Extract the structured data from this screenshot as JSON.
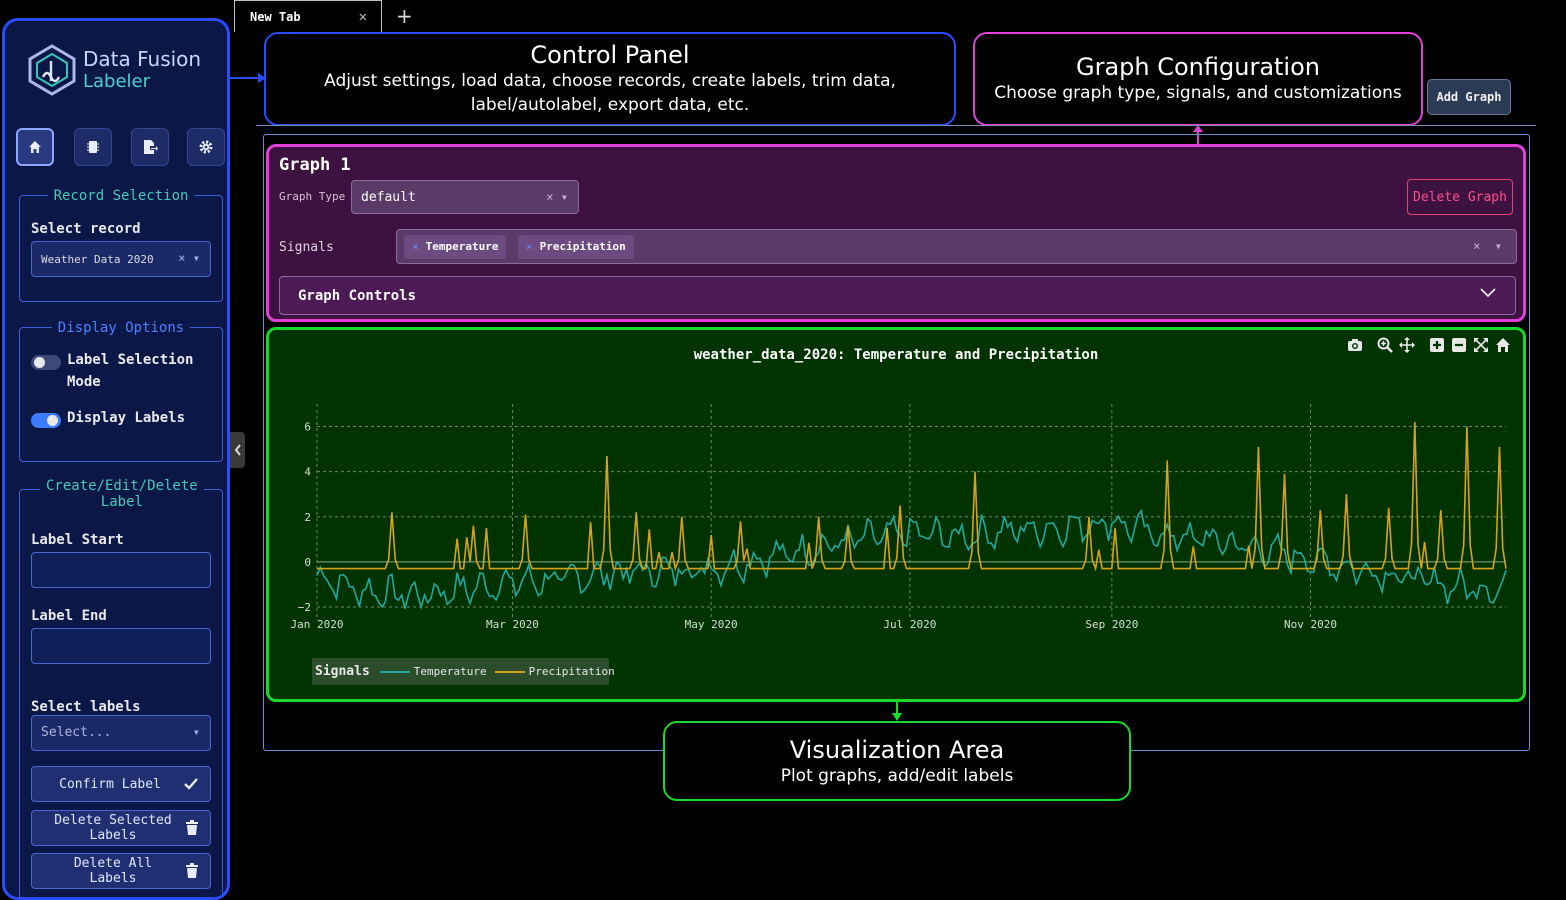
{
  "app": {
    "name_line1": "Data Fusion",
    "name_line2": "Labeler"
  },
  "tabs": [
    {
      "label": "New Tab"
    }
  ],
  "sidebar": {
    "nav": [
      "home-icon",
      "chip-icon",
      "export-icon",
      "gear-icon"
    ],
    "record_selection": {
      "title": "Record Selection",
      "select_label": "Select record",
      "selected_value": "Weather Data 2020"
    },
    "display_options": {
      "title": "Display Options",
      "label_selection_mode": "Label Selection Mode",
      "label_selection_mode_on": false,
      "display_labels": "Display Labels",
      "display_labels_on": true
    },
    "labels": {
      "title": "Create/Edit/Delete Label",
      "label_start": "Label Start",
      "label_start_value": "",
      "label_end": "Label End",
      "label_end_value": "",
      "select_labels": "Select labels",
      "select_placeholder": "Select...",
      "confirm_label": "Confirm Label",
      "delete_selected": "Delete Selected Labels",
      "delete_all": "Delete All Labels"
    }
  },
  "callouts": {
    "control_panel": {
      "title": "Control Panel",
      "text": "Adjust settings, load data, choose records, create labels, trim data, label/autolabel, export data, etc."
    },
    "graph_configuration": {
      "title": "Graph Configuration",
      "text": "Choose graph type, signals, and customizations"
    },
    "visualization_area": {
      "title": "Visualization Area",
      "text": "Plot graphs, add/edit labels"
    }
  },
  "toolbar": {
    "add_graph": "Add Graph"
  },
  "graph": {
    "title": "Graph 1",
    "type_label": "Graph Type",
    "type_value": "default",
    "delete_button": "Delete Graph",
    "signals_label": "Signals",
    "signals": [
      "Temperature",
      "Precipitation"
    ],
    "controls_label": "Graph Controls"
  },
  "colors": {
    "temperature": "#20a8a0",
    "precipitation": "#d8a218",
    "plot_bg": "#003300"
  },
  "chart_data": {
    "type": "line",
    "title": "weather_data_2020: Temperature and Precipitation",
    "legend_title": "Signals",
    "legend_position": "bottom-left",
    "grid": true,
    "x_ticks": [
      "Jan 2020",
      "Mar 2020",
      "May 2020",
      "Jul 2020",
      "Sep 2020",
      "Nov 2020"
    ],
    "y_ticks": [
      "6",
      "4",
      "2",
      "0",
      "−2"
    ],
    "xlim": [
      "2020-01-01",
      "2020-12-31"
    ],
    "ylim": [
      -2.4,
      7
    ],
    "precipitation_baseline": -0.3,
    "series": [
      {
        "name": "Temperature",
        "color": "#20a8a0",
        "x": [
          "2020-01-01",
          "2020-01-15",
          "2020-02-01",
          "2020-02-15",
          "2020-03-01",
          "2020-03-15",
          "2020-04-01",
          "2020-04-15",
          "2020-05-01",
          "2020-05-15",
          "2020-06-01",
          "2020-06-15",
          "2020-07-01",
          "2020-07-15",
          "2020-08-01",
          "2020-08-15",
          "2020-09-01",
          "2020-09-15",
          "2020-10-01",
          "2020-10-15",
          "2020-11-01",
          "2020-11-15",
          "2020-12-01",
          "2020-12-15",
          "2020-12-31"
        ],
        "values": [
          -0.6,
          -1.3,
          -1.5,
          -1.2,
          -0.9,
          -0.8,
          -0.5,
          -0.4,
          -0.3,
          0.1,
          0.6,
          1.0,
          1.3,
          1.1,
          1.4,
          1.5,
          1.8,
          1.2,
          1.0,
          0.6,
          0.1,
          -0.3,
          -0.7,
          -1.1,
          -1.2
        ]
      },
      {
        "name": "Precipitation",
        "color": "#d8a218",
        "x": [
          "2020-01-24",
          "2020-02-18",
          "2020-03-05",
          "2020-03-30",
          "2020-04-08",
          "2020-04-22",
          "2020-05-10",
          "2020-06-03",
          "2020-06-12",
          "2020-06-28",
          "2020-07-21",
          "2020-08-25",
          "2020-09-18",
          "2020-10-16",
          "2020-10-24",
          "2020-11-04",
          "2020-11-12",
          "2020-11-25",
          "2020-12-03",
          "2020-12-11",
          "2020-12-19",
          "2020-12-29"
        ],
        "values": [
          2.2,
          1.6,
          2.1,
          4.7,
          2.2,
          2.0,
          1.8,
          2.0,
          1.6,
          2.5,
          4.0,
          2.0,
          4.5,
          5.1,
          3.9,
          2.3,
          3.0,
          2.4,
          6.2,
          2.3,
          6.0,
          5.1
        ]
      }
    ]
  }
}
